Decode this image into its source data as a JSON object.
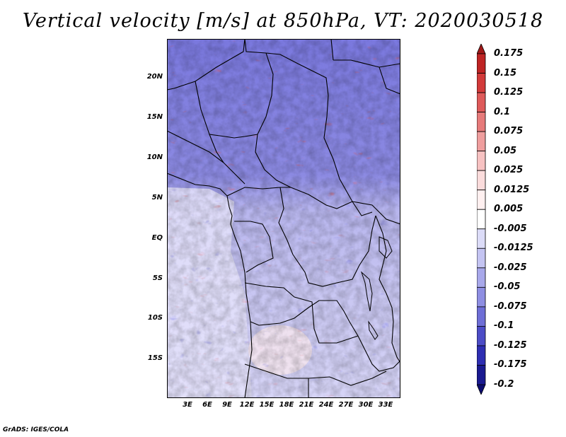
{
  "title": "Vertical velocity [m/s] at 850hPa, VT: 2020030518",
  "credit": "GrADS: IGES/COLA",
  "lat_labels": [
    "20N",
    "15N",
    "10N",
    "5N",
    "EQ",
    "5S",
    "10S",
    "15S"
  ],
  "lon_labels": [
    "3E",
    "6E",
    "9E",
    "12E",
    "15E",
    "18E",
    "21E",
    "24E",
    "27E",
    "30E",
    "33E"
  ],
  "map_extent": {
    "lon_min": 0,
    "lon_max": 35,
    "lat_min": -20,
    "lat_max": 25
  },
  "colorbar": {
    "levels": [
      "0.175",
      "0.15",
      "0.125",
      "0.1",
      "0.075",
      "0.05",
      "0.025",
      "0.0125",
      "0.005",
      "-0.005",
      "-0.0125",
      "-0.025",
      "-0.05",
      "-0.075",
      "-0.1",
      "-0.125",
      "-0.175",
      "-0.2"
    ],
    "colors": [
      "#a01818",
      "#be2424",
      "#d23a3a",
      "#de5a5a",
      "#e67a7a",
      "#ef9e9e",
      "#f7c2c2",
      "#fbdcdc",
      "#fff0f0",
      "#ffffff",
      "#dcdcf8",
      "#c4c4f2",
      "#a8a8ea",
      "#8e8ee2",
      "#6e6ed6",
      "#4c4cc6",
      "#2e2eb2",
      "#1a1a90",
      "#0c0c70"
    ]
  }
}
